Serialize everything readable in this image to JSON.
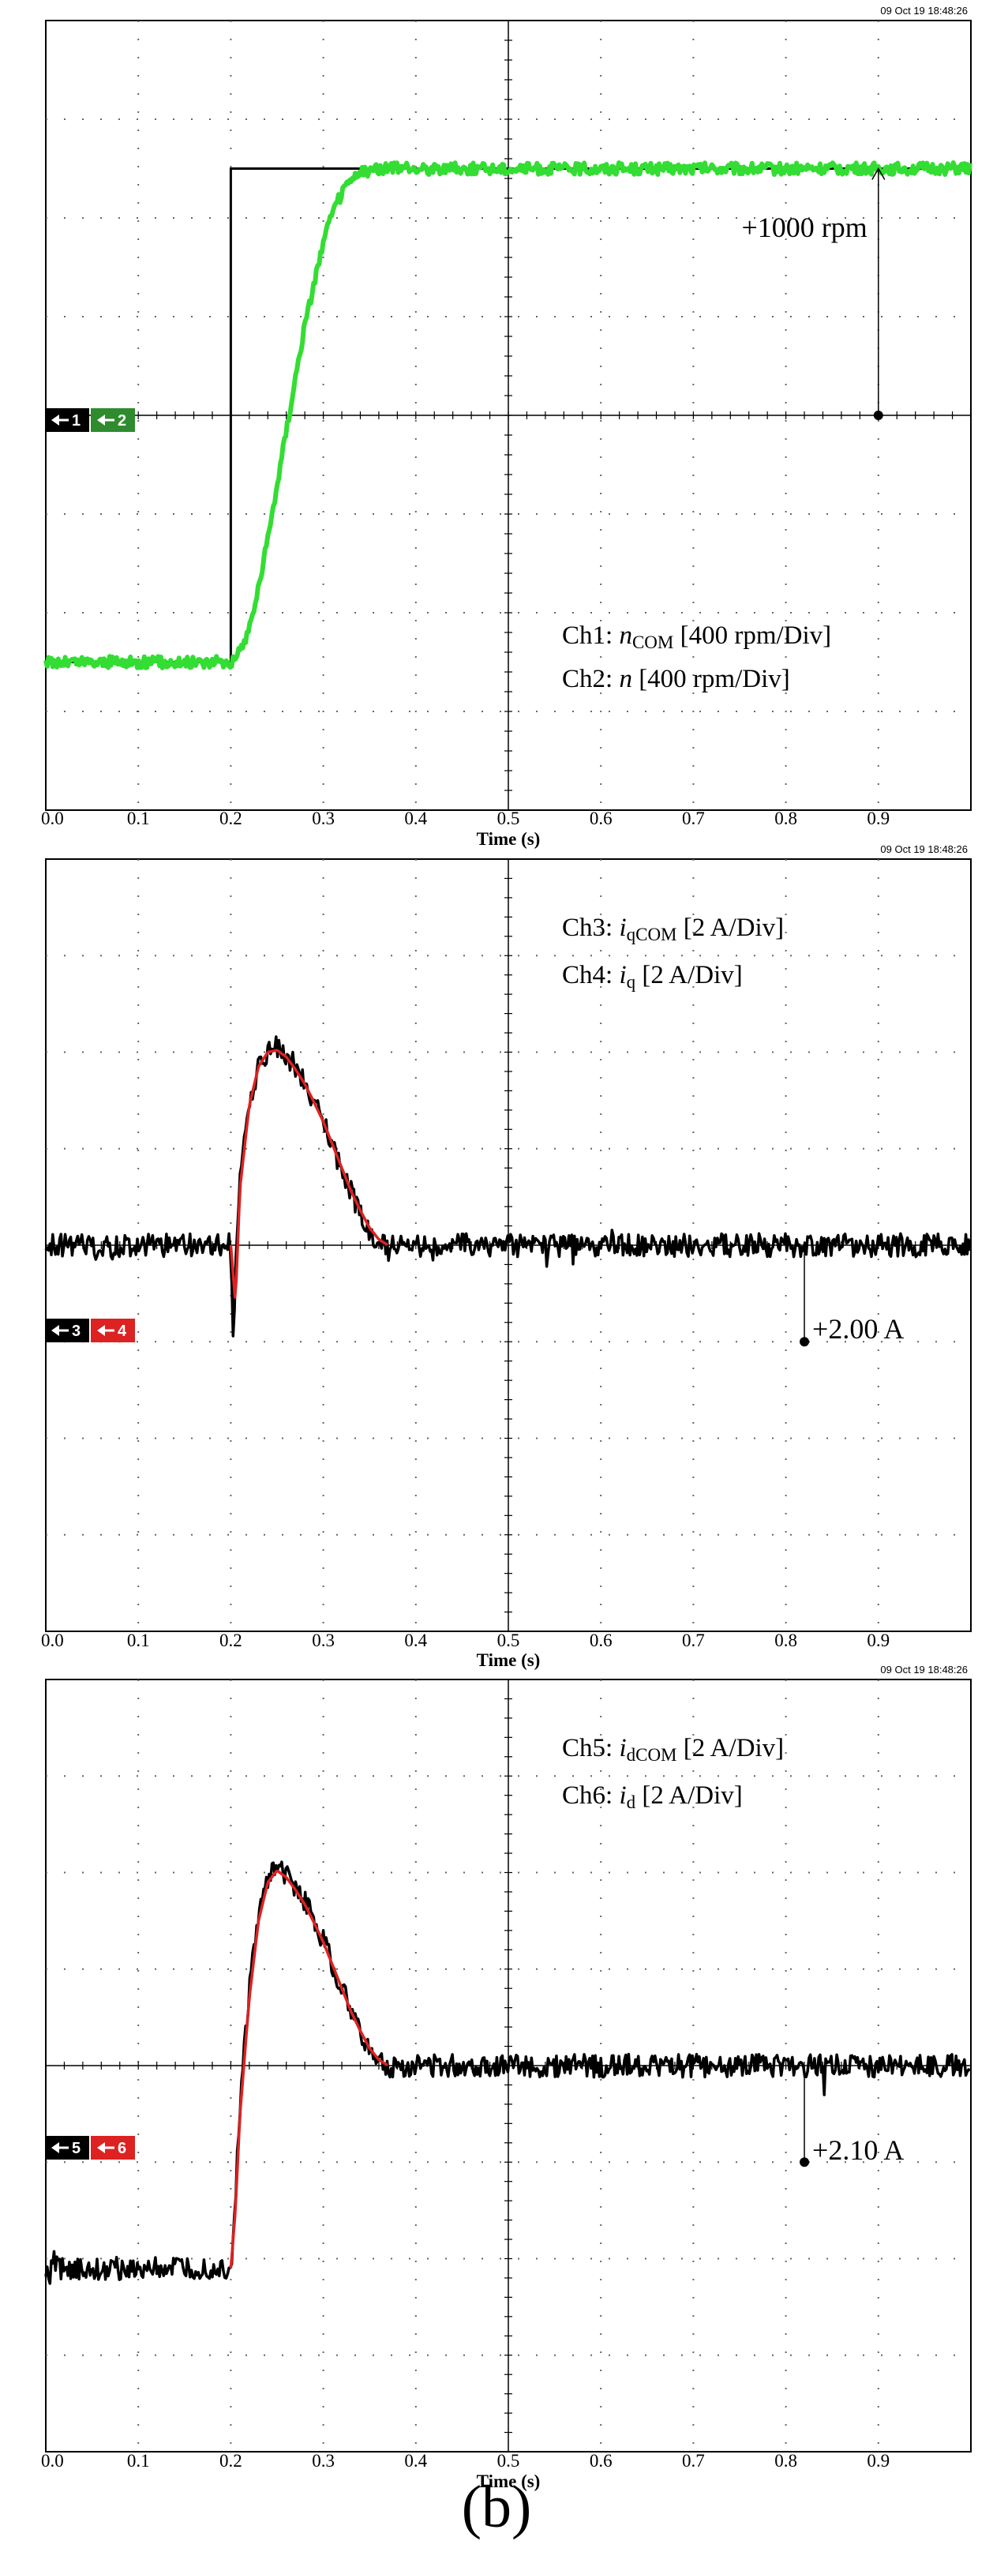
{
  "caption": "(b)",
  "chart_data": [
    {
      "type": "line",
      "timestamp": "09 Oct 19  18:48:26",
      "xlabel": "Time (s)",
      "xlim": [
        0,
        1.0
      ],
      "x_ticks": [
        "0.0",
        "0.1",
        "0.2",
        "0.3",
        "0.4",
        "0.5",
        "0.6",
        "0.7",
        "0.8",
        "0.9"
      ],
      "grid": true,
      "legend_lines": [
        {
          "prefix": "Ch1: ",
          "symbol": "n",
          "sub": "COM",
          "suffix": " [400 rpm/Div]"
        },
        {
          "prefix": "Ch2: ",
          "symbol": "n",
          "sub": "",
          "suffix": " [400 rpm/Div]"
        }
      ],
      "channel_markers": [
        {
          "label": "1",
          "color": "#000000"
        },
        {
          "label": "2",
          "color": "#2e8b2e"
        }
      ],
      "annotation": {
        "text": "+1000 rpm",
        "x": 0.9
      },
      "units_per_div": 400,
      "units": "rpm",
      "series": [
        {
          "name": "Ch1",
          "color": "#000000",
          "x": [
            0.0,
            0.2,
            0.2,
            1.0
          ],
          "y": [
            -2.5,
            -2.5,
            2.5,
            2.5
          ]
        },
        {
          "name": "Ch2",
          "color": "#33dd33",
          "x": [
            0.0,
            0.2,
            0.21,
            0.22,
            0.23,
            0.24,
            0.25,
            0.26,
            0.27,
            0.28,
            0.29,
            0.3,
            0.31,
            0.32,
            0.33,
            0.34,
            0.35,
            0.36,
            0.38,
            1.0
          ],
          "y": [
            -2.5,
            -2.5,
            -2.4,
            -2.15,
            -1.75,
            -1.25,
            -0.7,
            -0.15,
            0.4,
            0.9,
            1.35,
            1.75,
            2.05,
            2.25,
            2.38,
            2.45,
            2.48,
            2.5,
            2.5,
            2.5
          ]
        }
      ]
    },
    {
      "type": "line",
      "timestamp": "09 Oct 19  18:48:26",
      "xlabel": "Time (s)",
      "xlim": [
        0,
        1.0
      ],
      "x_ticks": [
        "0.0",
        "0.1",
        "0.2",
        "0.3",
        "0.4",
        "0.5",
        "0.6",
        "0.7",
        "0.8",
        "0.9"
      ],
      "grid": true,
      "legend_lines": [
        {
          "prefix": "Ch3: ",
          "symbol": "i",
          "sub": "qCOM",
          "suffix": " [2 A/Div]"
        },
        {
          "prefix": "Ch4: ",
          "symbol": "i",
          "sub": "q",
          "suffix": " [2 A/Div]"
        }
      ],
      "channel_markers": [
        {
          "label": "3",
          "color": "#000000"
        },
        {
          "label": "4",
          "color": "#dd2222"
        }
      ],
      "annotation": {
        "text": "+2.00 A",
        "x": 0.82
      },
      "units_per_div": 2,
      "units": "A",
      "series": [
        {
          "name": "Ch3",
          "color": "#000000",
          "x": [
            0.0,
            0.2,
            0.202,
            0.21,
            0.22,
            0.23,
            0.24,
            0.25,
            0.26,
            0.27,
            0.28,
            0.29,
            0.3,
            0.31,
            0.32,
            0.33,
            0.34,
            0.35,
            0.36,
            0.37,
            0.38,
            1.0
          ],
          "y": [
            0.0,
            0.0,
            -1.0,
            0.8,
            1.5,
            1.85,
            2.0,
            2.05,
            1.98,
            1.85,
            1.7,
            1.5,
            1.3,
            1.05,
            0.8,
            0.55,
            0.35,
            0.15,
            0.05,
            -0.05,
            0.0,
            0.0
          ]
        },
        {
          "name": "Ch4",
          "color": "#dd2222",
          "x": [
            0.2,
            0.205,
            0.21,
            0.22,
            0.23,
            0.24,
            0.25,
            0.26,
            0.27,
            0.28,
            0.29,
            0.3,
            0.31,
            0.32,
            0.33,
            0.34,
            0.35,
            0.36,
            0.37
          ],
          "y": [
            0.0,
            -0.6,
            0.6,
            1.45,
            1.85,
            2.0,
            2.02,
            1.95,
            1.82,
            1.67,
            1.48,
            1.28,
            1.04,
            0.8,
            0.56,
            0.36,
            0.18,
            0.06,
            0.0
          ]
        }
      ]
    },
    {
      "type": "line",
      "timestamp": "09 Oct 19  18:48:26",
      "xlabel": "Time (s)",
      "xlim": [
        0,
        1.0
      ],
      "x_ticks": [
        "0.0",
        "0.1",
        "0.2",
        "0.3",
        "0.4",
        "0.5",
        "0.6",
        "0.7",
        "0.8",
        "0.9"
      ],
      "grid": true,
      "legend_lines": [
        {
          "prefix": "Ch5: ",
          "symbol": "i",
          "sub": "dCOM",
          "suffix": " [2 A/Div]"
        },
        {
          "prefix": "Ch6: ",
          "symbol": "i",
          "sub": "d",
          "suffix": " [2 A/Div]"
        }
      ],
      "channel_markers": [
        {
          "label": "5",
          "color": "#000000"
        },
        {
          "label": "6",
          "color": "#dd2222"
        }
      ],
      "annotation": {
        "text": "+2.10 A",
        "x": 0.82
      },
      "units_per_div": 2,
      "units": "A",
      "series": [
        {
          "name": "Ch5",
          "color": "#000000",
          "x": [
            0.0,
            0.2,
            0.205,
            0.21,
            0.22,
            0.23,
            0.24,
            0.25,
            0.26,
            0.27,
            0.28,
            0.29,
            0.3,
            0.31,
            0.32,
            0.33,
            0.34,
            0.35,
            0.36,
            0.37,
            0.38,
            1.0
          ],
          "y": [
            -2.1,
            -2.1,
            -1.4,
            -0.4,
            0.8,
            1.55,
            1.92,
            2.05,
            1.98,
            1.85,
            1.7,
            1.5,
            1.3,
            1.05,
            0.8,
            0.55,
            0.35,
            0.15,
            0.05,
            -0.05,
            0.0,
            0.0
          ]
        },
        {
          "name": "Ch6",
          "color": "#dd2222",
          "x": [
            0.2,
            0.205,
            0.21,
            0.22,
            0.23,
            0.24,
            0.25,
            0.26,
            0.27,
            0.28,
            0.29,
            0.3,
            0.31,
            0.32,
            0.33,
            0.34,
            0.35,
            0.36,
            0.37
          ],
          "y": [
            -2.1,
            -1.5,
            -0.5,
            0.7,
            1.5,
            1.9,
            2.02,
            1.95,
            1.82,
            1.67,
            1.48,
            1.28,
            1.04,
            0.8,
            0.56,
            0.36,
            0.18,
            0.06,
            0.0
          ]
        }
      ]
    }
  ]
}
